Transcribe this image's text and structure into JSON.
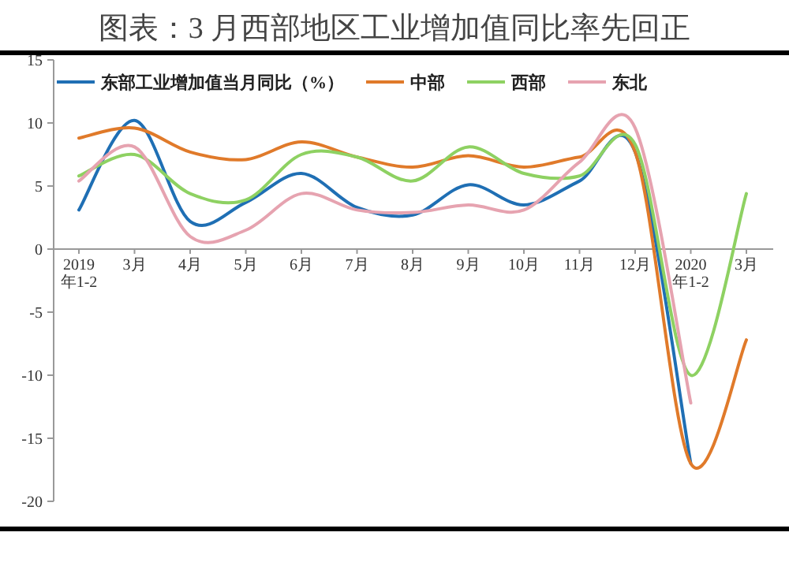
{
  "chart_data": {
    "type": "line",
    "title": "图表：3 月西部地区工业增加值同比率先回正",
    "categories": [
      "2019年1-2",
      "3月",
      "4月",
      "5月",
      "6月",
      "7月",
      "8月",
      "9月",
      "10月",
      "11月",
      "12月",
      "2020年1-2",
      "3月"
    ],
    "series": [
      {
        "name": "东部工业增加值当月同比（%）",
        "color": "#1f6fb4",
        "values": [
          3.1,
          10.2,
          2.2,
          3.7,
          6.0,
          3.3,
          2.7,
          5.1,
          3.5,
          5.4,
          7.7,
          -17,
          null
        ]
      },
      {
        "name": "中部",
        "color": "#e07a2a",
        "values": [
          8.8,
          9.6,
          7.7,
          7.1,
          8.5,
          7.3,
          6.5,
          7.4,
          6.5,
          7.3,
          7.7,
          -17,
          -7.2
        ]
      },
      {
        "name": "西部",
        "color": "#8ed162",
        "values": [
          5.8,
          7.5,
          4.4,
          3.9,
          7.5,
          7.3,
          5.4,
          8.1,
          6.0,
          5.8,
          8.3,
          -10,
          4.4
        ]
      },
      {
        "name": "东北",
        "color": "#e6a3b0",
        "values": [
          5.4,
          8.1,
          1.0,
          1.5,
          4.4,
          3.1,
          2.9,
          3.5,
          3.1,
          6.9,
          9.6,
          -12.2,
          null
        ]
      }
    ],
    "ylim": [
      -20,
      15
    ],
    "yticks": [
      -20,
      -15,
      -10,
      -5,
      0,
      5,
      10,
      15
    ],
    "legend": "top",
    "grid": false
  }
}
